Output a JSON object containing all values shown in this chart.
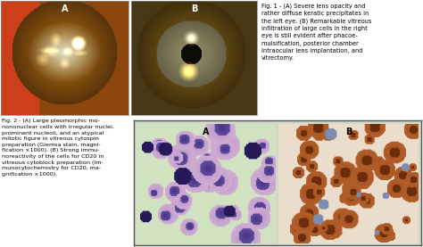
{
  "fig1_caption": "Fig. 1 - (A) Severe lens opacity and\nrather diffuse keratic precipitates in\nthe left eye. (B) Remarkable vitreous\ninfiltration of large cells in the right\neye is still evident after phacoe-\nmulsification, posterior chamber\nintraocular lens implantation, and\nvitrectomy.",
  "fig2_caption": "Fig. 2 - (A) Large pleomorphic mo-\nnononuclear cells with irregular nuclei,\nprominent nucleoli, and an atypical\nmitotic figure in vitreous cytospin\npreparation (Giemsa stain, magni-\nfication ×1000). (B) Strong immu-\nnoreactivity of the cells for CD20 in\nvitreous cytoblock preparation (im-\nmunocytochemistry for CD20, ma-\ngnification ×1000).",
  "bg_color": "#ffffff",
  "label_A1": "A",
  "label_B1": "B",
  "label_A2": "A",
  "label_B2": "B",
  "img1_bg": [
    200,
    100,
    30
  ],
  "img2_bg": [
    100,
    80,
    30
  ],
  "micro1_bg": [
    195,
    220,
    185
  ],
  "micro2_bg": [
    230,
    210,
    190
  ]
}
